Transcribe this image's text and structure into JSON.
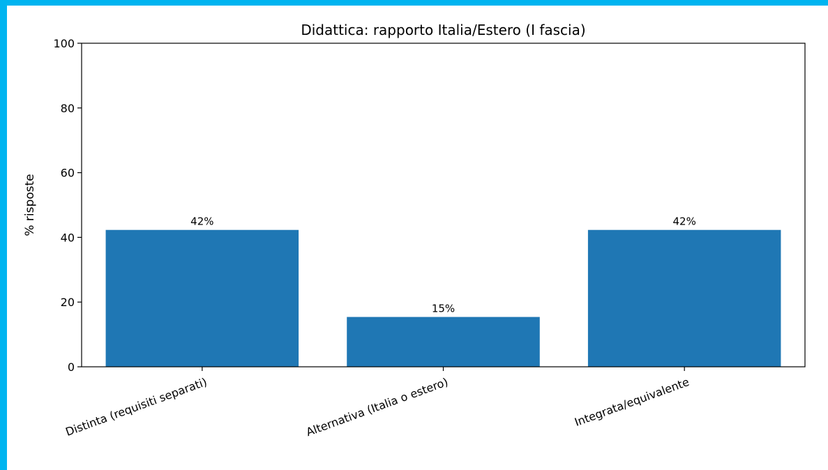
{
  "chart_data": {
    "type": "bar",
    "title": "Didattica: rapporto Italia/Estero (I fascia)",
    "xlabel": "",
    "ylabel": "% risposte",
    "categories": [
      "Distinta (requisiti separati)",
      "Alternativa (Italia o estero)",
      "Integrata/equivalente"
    ],
    "values": [
      42.3,
      15.4,
      42.3
    ],
    "value_labels": [
      "42%",
      "15%",
      "42%"
    ],
    "ylim": [
      0,
      100
    ],
    "yticks": [
      0,
      20,
      40,
      60,
      80,
      100
    ],
    "bar_color": "#1f77b4",
    "grid": false,
    "legend": "none"
  }
}
